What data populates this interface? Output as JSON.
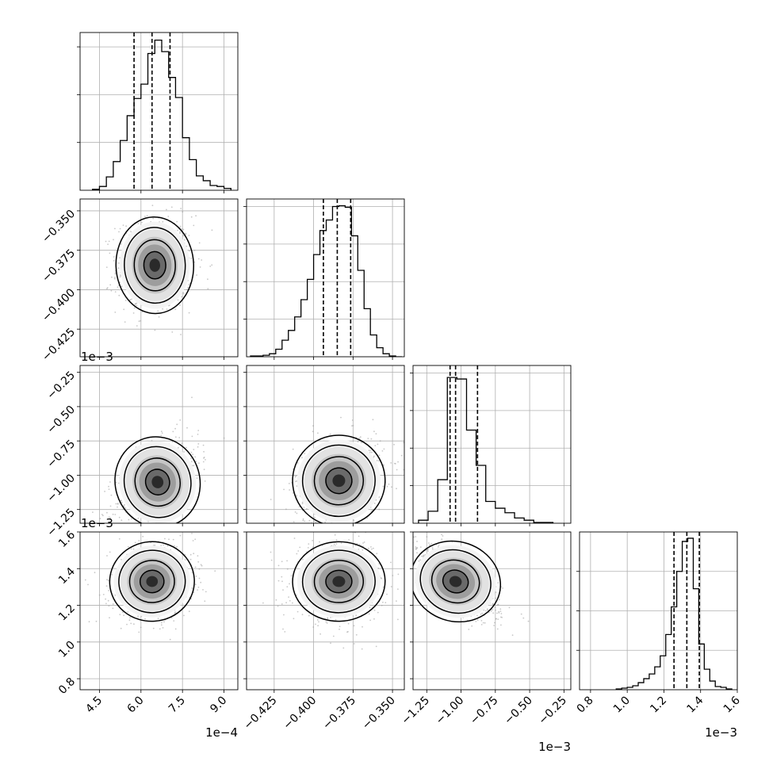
{
  "chart_data": {
    "type": "corner",
    "grid": true,
    "panels": [
      {
        "id": "hist-0",
        "type": "histogram",
        "row": 0,
        "col": 0,
        "param": 0,
        "bins": [
          4.25,
          4.5,
          4.75,
          5.0,
          5.25,
          5.5,
          5.75,
          6.0,
          6.25,
          6.5,
          6.75,
          7.0,
          7.25,
          7.5,
          7.75,
          8.0,
          8.25,
          8.5,
          8.75,
          9.0,
          9.25
        ],
        "counts": [
          1,
          4,
          14,
          30,
          52,
          78,
          96,
          111,
          143,
          157,
          145,
          118,
          97,
          55,
          32,
          15,
          10,
          5,
          4,
          2
        ],
        "quantiles": [
          5.75,
          6.4,
          7.05
        ],
        "ylim": [
          0,
          165
        ]
      },
      {
        "id": "hist-1",
        "type": "histogram",
        "row": 1,
        "col": 1,
        "param": 1,
        "bins": [
          -0.44,
          -0.436,
          -0.432,
          -0.428,
          -0.424,
          -0.42,
          -0.416,
          -0.412,
          -0.408,
          -0.404,
          -0.4,
          -0.396,
          -0.392,
          -0.388,
          -0.384,
          -0.38,
          -0.376,
          -0.372,
          -0.368,
          -0.364,
          -0.36,
          -0.356,
          -0.352,
          -0.348,
          -0.344
        ],
        "counts": [
          1,
          1,
          2,
          4,
          10,
          22,
          35,
          53,
          76,
          103,
          136,
          168,
          182,
          200,
          201,
          199,
          161,
          115,
          64,
          29,
          12,
          4,
          1,
          0
        ],
        "quantiles": [
          -0.3938,
          -0.385,
          -0.3765
        ],
        "ylim": [
          0,
          210
        ]
      },
      {
        "id": "hist-2",
        "type": "histogram",
        "row": 2,
        "col": 2,
        "param": 2,
        "bins": [
          -1.31,
          -1.24,
          -1.17,
          -1.1,
          -1.03,
          -0.96,
          -0.89,
          -0.82,
          -0.75,
          -0.68,
          -0.61,
          -0.54,
          -0.47,
          -0.4,
          -0.33
        ],
        "counts": [
          4,
          16,
          58,
          194,
          192,
          124,
          77,
          29,
          20,
          14,
          7,
          4,
          1,
          1
        ],
        "quantiles": [
          -1.08,
          -1.04,
          -0.88
        ],
        "ylim": [
          0,
          210
        ]
      },
      {
        "id": "hist-3",
        "type": "histogram",
        "row": 3,
        "col": 3,
        "param": 3,
        "bins": [
          0.94,
          0.97,
          1.0,
          1.03,
          1.06,
          1.09,
          1.12,
          1.15,
          1.18,
          1.21,
          1.24,
          1.27,
          1.3,
          1.33,
          1.36,
          1.39,
          1.42,
          1.45,
          1.48,
          1.51,
          1.54,
          1.57
        ],
        "counts": [
          1,
          2,
          3,
          5,
          9,
          14,
          20,
          29,
          43,
          70,
          105,
          150,
          188,
          192,
          128,
          58,
          26,
          11,
          4,
          3,
          1
        ],
        "quantiles": [
          1.255,
          1.325,
          1.393
        ],
        "ylim": [
          0,
          200
        ]
      },
      {
        "id": "kde-1-0",
        "type": "density",
        "row": 1,
        "col": 0,
        "xparam": 0,
        "yparam": 1,
        "center": [
          6.5,
          -0.3845
        ],
        "sigma": [
          0.55,
          0.012
        ],
        "rho": 0.05
      },
      {
        "id": "kde-2-0",
        "type": "density",
        "row": 2,
        "col": 0,
        "xparam": 0,
        "yparam": 2,
        "center": [
          6.6,
          -1.05
        ],
        "sigma": [
          0.6,
          0.13
        ],
        "rho": 0.5
      },
      {
        "id": "kde-2-1",
        "type": "density",
        "row": 2,
        "col": 1,
        "xparam": 1,
        "yparam": 2,
        "center": [
          -0.384,
          -1.04
        ],
        "sigma": [
          0.0115,
          0.13
        ],
        "rho": 0.2
      },
      {
        "id": "kde-3-0",
        "type": "density",
        "row": 3,
        "col": 0,
        "xparam": 0,
        "yparam": 3,
        "center": [
          6.4,
          1.33
        ],
        "sigma": [
          0.6,
          0.085
        ],
        "rho": 0.12
      },
      {
        "id": "kde-3-1",
        "type": "density",
        "row": 3,
        "col": 1,
        "xparam": 1,
        "yparam": 3,
        "center": [
          -0.384,
          1.33
        ],
        "sigma": [
          0.0115,
          0.085
        ],
        "rho": 0.05
      },
      {
        "id": "kde-3-2",
        "type": "density",
        "row": 3,
        "col": 2,
        "xparam": 2,
        "yparam": 3,
        "center": [
          -1.04,
          1.33
        ],
        "sigma": [
          0.13,
          0.085
        ],
        "rho": -0.7
      }
    ],
    "params": [
      {
        "range": [
          3.8,
          9.5
        ],
        "ticks": [
          4.5,
          6.0,
          7.5,
          9.0
        ],
        "ticklabels": [
          "4.5",
          "6.0",
          "7.5",
          "9.0"
        ],
        "offset": "1e−4"
      },
      {
        "range": [
          -0.4425,
          -0.3425
        ],
        "ticks": [
          -0.425,
          -0.4,
          -0.375,
          -0.35
        ],
        "ticklabels": [
          "−0.425",
          "−0.400",
          "−0.375",
          "−0.350"
        ],
        "offset": ""
      },
      {
        "range": [
          -1.35,
          -0.2
        ],
        "ticks": [
          -1.25,
          -1.0,
          -0.75,
          -0.5,
          -0.25
        ],
        "ticklabels": [
          "−1.25",
          "−1.00",
          "−0.75",
          "−0.50",
          "−0.25"
        ],
        "offset": "1e−3"
      },
      {
        "range": [
          0.74,
          1.6
        ],
        "ticks": [
          0.8,
          1.0,
          1.2,
          1.4,
          1.6
        ],
        "ticklabels": [
          "0.8",
          "1.0",
          "1.2",
          "1.4",
          "1.6"
        ],
        "offset": "1e−3"
      }
    ],
    "offset_labels": [
      {
        "id": "offset-y1",
        "text": "1e−3",
        "row": 2,
        "axis": "y"
      },
      {
        "id": "offset-y2",
        "text": "1e−3",
        "row": 3,
        "axis": "y"
      },
      {
        "id": "offset-x0",
        "text": "1e−4",
        "col": 0,
        "axis": "x"
      },
      {
        "id": "offset-x2",
        "text": "1e−3",
        "col": 2,
        "axis": "x"
      },
      {
        "id": "offset-x3",
        "text": "1e−3",
        "col": 3,
        "axis": "x"
      }
    ],
    "colors": {
      "line": "#000000",
      "grid": "#b0b0b0",
      "points": "#9a9a9a"
    }
  }
}
